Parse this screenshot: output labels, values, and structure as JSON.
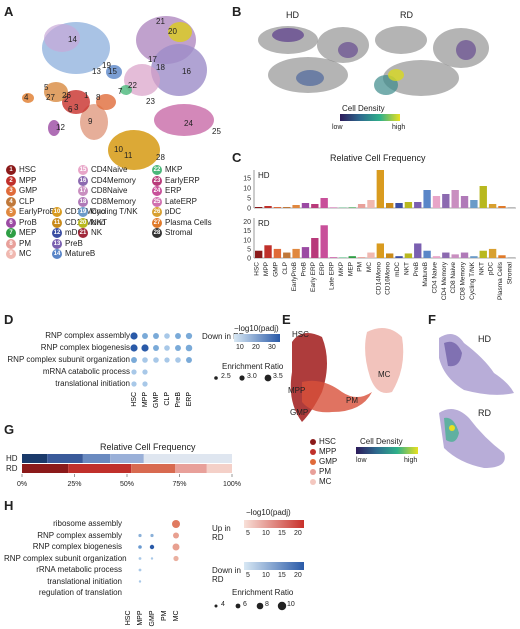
{
  "panels": {
    "A": "A",
    "B": "B",
    "C": "C",
    "D": "D",
    "E": "E",
    "F": "F",
    "G": "G",
    "H": "H"
  },
  "colors": {
    "hd_bar": "#d98a1f",
    "rd_bar": "#8b1a1a"
  },
  "legendA": [
    {
      "n": "1",
      "label": "HSC",
      "color": "#8b1a1a"
    },
    {
      "n": "2",
      "label": "MPP",
      "color": "#c0302b"
    },
    {
      "n": "3",
      "label": "GMP",
      "color": "#e06b3a"
    },
    {
      "n": "4",
      "label": "CLP",
      "color": "#c0783a"
    },
    {
      "n": "5",
      "label": "EarlyProB",
      "color": "#e0883f"
    },
    {
      "n": "6",
      "label": "ProB",
      "color": "#9b4aa3"
    },
    {
      "n": "7",
      "label": "MEP",
      "color": "#2e9e44"
    },
    {
      "n": "8",
      "label": "PM",
      "color": "#e8a09a"
    },
    {
      "n": "9",
      "label": "MC",
      "color": "#f0b8b0"
    },
    {
      "n": "10",
      "label": "CD14Mono",
      "color": "#d99b1f"
    },
    {
      "n": "11",
      "label": "CD16Mono",
      "color": "#c98a1a"
    },
    {
      "n": "12",
      "label": "mDC",
      "color": "#3b4ea3"
    },
    {
      "n": "13",
      "label": "PreB",
      "color": "#7a5fb0"
    },
    {
      "n": "14",
      "label": "MatureB",
      "color": "#5a86c8"
    },
    {
      "n": "15",
      "label": "CD4Naive",
      "color": "#e8a5c8"
    },
    {
      "n": "16",
      "label": "CD4Memory",
      "color": "#8c6ab0"
    },
    {
      "n": "17",
      "label": "CD8Naive",
      "color": "#c98fc0"
    },
    {
      "n": "18",
      "label": "CD8Memory",
      "color": "#b07ab8"
    },
    {
      "n": "19",
      "label": "Cycling T/NK",
      "color": "#6b9bc8"
    },
    {
      "n": "20",
      "label": "NKT",
      "color": "#b8b81f"
    },
    {
      "n": "21",
      "label": "NK",
      "color": "#a0283a"
    },
    {
      "n": "22",
      "label": "MKP",
      "color": "#4ab87a"
    },
    {
      "n": "23",
      "label": "EarlyERP",
      "color": "#b83a7a"
    },
    {
      "n": "24",
      "label": "ERP",
      "color": "#c8509a"
    },
    {
      "n": "25",
      "label": "LateERP",
      "color": "#d070b0"
    },
    {
      "n": "26",
      "label": "pDC",
      "color": "#d8a030"
    },
    {
      "n": "27",
      "label": "Plasma Cells",
      "color": "#e07a2a"
    },
    {
      "n": "28",
      "label": "Stromal",
      "color": "#333333"
    }
  ],
  "umapA_labels": [
    "1",
    "2",
    "3",
    "4",
    "5",
    "6",
    "7",
    "8",
    "9",
    "10",
    "11",
    "12",
    "13",
    "14",
    "15",
    "16",
    "17",
    "18",
    "19",
    "20",
    "21",
    "22",
    "23",
    "24",
    "25",
    "26",
    "27",
    "28"
  ],
  "panelB": {
    "hd": "HD",
    "rd": "RD",
    "density_title": "Cell Density",
    "low": "low",
    "high": "high"
  },
  "panelC": {
    "title": "Relative Cell Frequency",
    "hd": "HD",
    "rd": "RD",
    "categories": [
      "HSC",
      "MPP",
      "GMP",
      "CLP",
      "EarlyProB",
      "ProB",
      "Early ERP",
      "ERP",
      "Late ERP",
      "MKP",
      "MEP",
      "PM",
      "MC",
      "CD14Mono",
      "CD16Mono",
      "mDC",
      "NKT",
      "PreB",
      "MatureB",
      "CD4 Naive",
      "CD4 Memory",
      "CD8 Naive",
      "CD8 Memory",
      "Cycling T/NK",
      "NKT",
      "pDC",
      "Plasma Cells",
      "Stromal"
    ],
    "hd_ticks": [
      "0",
      "5",
      "10",
      "15"
    ],
    "rd_ticks": [
      "0",
      "5",
      "10",
      "15",
      "20"
    ]
  },
  "chart_data": [
    {
      "type": "bar",
      "title": "Relative Cell Frequency",
      "categories": [
        "HSC",
        "MPP",
        "GMP",
        "CLP",
        "EarlyProB",
        "ProB",
        "Early ERP",
        "ERP",
        "Late ERP",
        "MKP",
        "MEP",
        "PM",
        "MC",
        "CD14Mono",
        "CD16Mono",
        "mDC",
        "NKT",
        "PreB",
        "MatureB",
        "CD4 Naive",
        "CD4 Memory",
        "CD8 Naive",
        "CD8 Memory",
        "Cycling T/NK",
        "NKT",
        "pDC",
        "Plasma Cells",
        "Stromal"
      ],
      "series": [
        {
          "name": "HD",
          "values": [
            0.5,
            1,
            0.5,
            0.5,
            1.5,
            2.5,
            2,
            5,
            0.3,
            0.2,
            0.3,
            2,
            4,
            19,
            2.5,
            2.5,
            3,
            3,
            9,
            6,
            7,
            9,
            6,
            4,
            11,
            2,
            1,
            0.1
          ]
        },
        {
          "name": "RD",
          "values": [
            4,
            7,
            5,
            3,
            5,
            6,
            11,
            18,
            0.5,
            0.3,
            1,
            0.5,
            3,
            8,
            2.5,
            1,
            2.5,
            8,
            4,
            1,
            3,
            2,
            3,
            1,
            4,
            5,
            1.5,
            0.1
          ]
        }
      ],
      "ylim_hd": [
        0,
        19
      ],
      "ylim_rd": [
        0,
        22
      ]
    },
    {
      "type": "bar",
      "title": "Relative Cell Frequency",
      "categories": [
        "HD",
        "RD"
      ],
      "xlabel_ticks": [
        "0%",
        "25%",
        "50%",
        "75%",
        "100%"
      ],
      "series": [
        {
          "name": "HSC",
          "values": [
            12,
            22
          ]
        },
        {
          "name": "MPP",
          "values": [
            17,
            30
          ]
        },
        {
          "name": "GMP",
          "values": [
            13,
            21
          ]
        },
        {
          "name": "PM",
          "values": [
            16,
            15
          ]
        },
        {
          "name": "MC",
          "values": [
            42,
            12
          ]
        }
      ]
    }
  ],
  "panelD": {
    "terms": [
      "RNP complex assembly",
      "RNP complex biogenesis",
      "RNP complex subunit organization",
      "mRNA catabolic process",
      "translational initiation"
    ],
    "cols": [
      "HSC",
      "MPP",
      "GMP",
      "CLP",
      "PreB",
      "ERP"
    ],
    "legend_dir": "Down in RD",
    "legend_title": "−log10(padj)",
    "color_ticks": [
      "10",
      "20",
      "30"
    ],
    "size_title": "Enrichment Ratio",
    "size_ticks": [
      "2.5",
      "3.0",
      "3.5"
    ],
    "dots": [
      [
        [
          1,
          1.0
        ],
        [
          1,
          0.6
        ],
        [
          1,
          0.6
        ],
        [
          1,
          0.5
        ],
        [
          1,
          0.6
        ],
        [
          1,
          0.7
        ]
      ],
      [
        [
          1,
          1.0
        ],
        [
          1,
          1.0
        ],
        [
          1,
          0.6
        ],
        [
          1,
          0.5
        ],
        [
          1,
          0.6
        ],
        [
          1,
          0.8
        ]
      ],
      [
        [
          1,
          0.6
        ],
        [
          1,
          0.5
        ],
        [
          1,
          0.5
        ],
        [
          1,
          0.4
        ],
        [
          1,
          0.5
        ],
        [
          1,
          0.6
        ]
      ],
      [
        [
          1,
          0.4
        ],
        [
          1,
          0.4
        ],
        [
          0,
          0
        ],
        [
          0,
          0
        ],
        [
          0,
          0
        ],
        [
          0,
          0
        ]
      ],
      [
        [
          1,
          0.4
        ],
        [
          1,
          0.4
        ],
        [
          0,
          0
        ],
        [
          0,
          0
        ],
        [
          0,
          0
        ],
        [
          0,
          0
        ]
      ]
    ]
  },
  "panelE": {
    "labels": [
      "HSC",
      "MPP",
      "GMP",
      "PM",
      "MC"
    ],
    "legend": [
      "HSC",
      "MPP",
      "GMP",
      "PM",
      "MC"
    ],
    "legend_colors": [
      "#8b1a1a",
      "#c0302b",
      "#e06b3a",
      "#e8a09a",
      "#f4c8c0"
    ],
    "density_title": "Cell Density",
    "low": "low",
    "high": "high"
  },
  "panelF": {
    "hd": "HD",
    "rd": "RD"
  },
  "panelG": {
    "title": "Relative Cell Frequency",
    "hd": "HD",
    "rd": "RD",
    "ticks": [
      "0%",
      "25%",
      "50%",
      "75%",
      "100%"
    ]
  },
  "panelH": {
    "terms": [
      "ribosome assembly",
      "RNP complex assembly",
      "RNP complex biogenesis",
      "RNP complex subunit organization",
      "rRNA metabolic process",
      "translational initiation",
      "regulation of translation"
    ],
    "cols": [
      "HSC",
      "MPP",
      "GMP",
      "PM",
      "MC"
    ],
    "up_dir": "Up in RD",
    "down_dir": "Down in RD",
    "legend_title": "−log10(padj)",
    "up_ticks": [
      "5",
      "10",
      "15",
      "20"
    ],
    "down_ticks": [
      "5",
      "10",
      "15",
      "20"
    ],
    "size_title": "Enrichment Ratio",
    "size_ticks": [
      "4",
      "6",
      "8",
      "10"
    ]
  }
}
